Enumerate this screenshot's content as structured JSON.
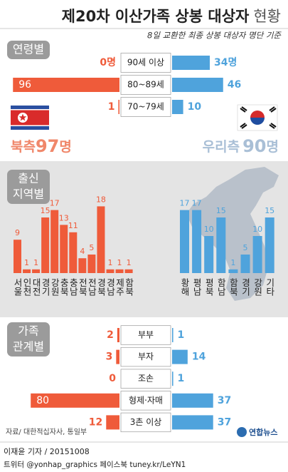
{
  "title": "제20차 이산가족 상봉 대상자",
  "title_suffix": "현황",
  "subtitle": "8일 교환한 최종 상봉 대상자 명단 기준",
  "totals": [
    {
      "label": "북측",
      "value": 97,
      "unit": "명",
      "color": "#f0876a"
    },
    {
      "label": "우리측",
      "value": 90,
      "unit": "명",
      "color": "#a9bfd6"
    }
  ],
  "source": "자료/ 대한적십자사, 통일부",
  "logo": "연합뉴스",
  "byline": "이재윤 기자 / 20151008",
  "social": "트위터 @yonhap_graphics 페이스북 tuney.kr/LeYN1",
  "chart_data": [
    {
      "type": "butterfly",
      "title_lines": [
        "연령별"
      ],
      "categories": [
        "90세 이상",
        "80~89세",
        "70~79세"
      ],
      "xlim": [
        0,
        100
      ],
      "series": [
        {
          "color": "#ef5b3a",
          "values": [
            0,
            96,
            1
          ],
          "value_labels": [
            "0명",
            "96",
            "1"
          ]
        },
        {
          "color": "#4fa3dc",
          "values": [
            34,
            46,
            10
          ],
          "value_labels": [
            "34명",
            "46",
            "10"
          ]
        }
      ]
    },
    {
      "type": "bar",
      "title_lines": [
        "출신",
        "지역별"
      ],
      "categories": [
        "서울",
        "인천",
        "대전",
        "경기",
        "강원",
        "충북",
        "충남",
        "전북",
        "전남",
        "경북",
        "경남",
        "제주",
        "함북"
      ],
      "values": [
        9,
        1,
        1,
        15,
        17,
        13,
        11,
        4,
        5,
        18,
        1,
        1,
        1
      ],
      "color": "#ef5b3a",
      "ylim": [
        0,
        20
      ]
    },
    {
      "type": "bar",
      "categories": [
        "황해",
        "평남",
        "평북",
        "함남",
        "함북",
        "경기",
        "강원",
        "기타"
      ],
      "values": [
        17,
        17,
        10,
        15,
        1,
        5,
        10,
        15
      ],
      "color": "#4fa3dc",
      "ylim": [
        0,
        20
      ]
    },
    {
      "type": "butterfly",
      "title_lines": [
        "가족",
        "관계별"
      ],
      "categories": [
        "부부",
        "부자",
        "조손",
        "형제·자매",
        "3촌 이상"
      ],
      "xlim": [
        0,
        100
      ],
      "series": [
        {
          "color": "#ef5b3a",
          "values": [
            2,
            3,
            0,
            80,
            12
          ]
        },
        {
          "color": "#4fa3dc",
          "values": [
            1,
            14,
            1,
            37,
            37
          ]
        }
      ]
    }
  ]
}
